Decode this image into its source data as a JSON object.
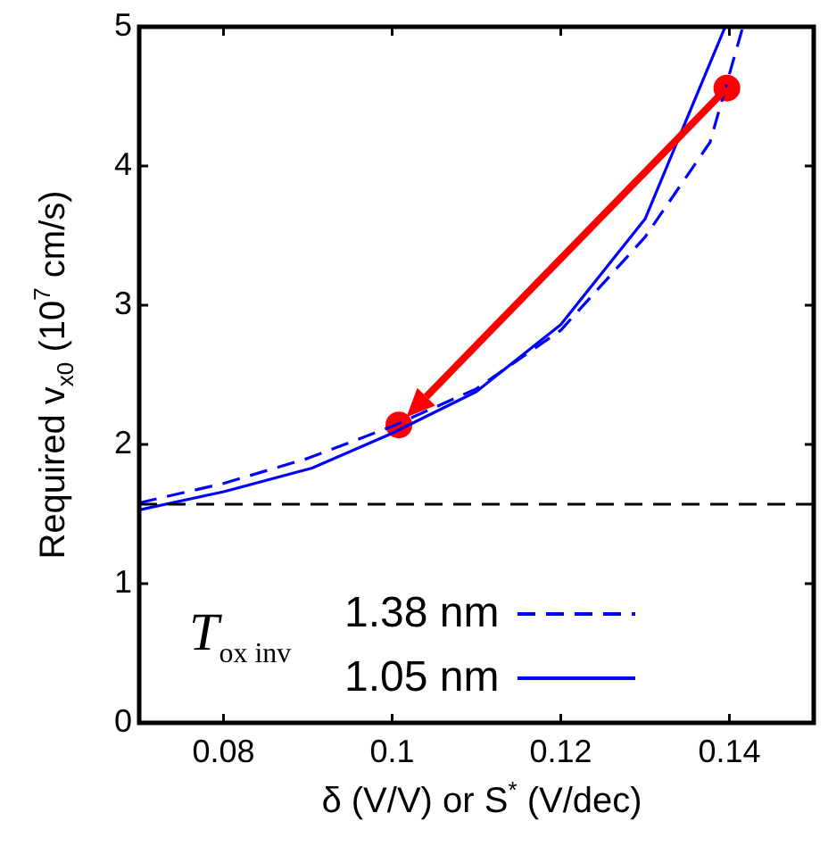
{
  "chart_data": {
    "type": "line",
    "xlabel": "δ (V/V) or S$^{*}$ (V/dec)",
    "ylabel": "Required v$_{x0}$ (10$^{7}$ cm/s)",
    "legend_title": "T$_{ox inv}$",
    "legend": "bottom",
    "grid": false,
    "marker": "none",
    "xlim": [
      0.07,
      0.15
    ],
    "xticks": [
      0.08,
      0.1,
      0.12,
      0.14
    ],
    "ylim": [
      0,
      5
    ],
    "yticks": [
      0,
      1,
      2,
      3,
      4,
      5
    ],
    "series": [
      {
        "name": "1.38 nm",
        "color": "#0000ff",
        "line_style": "dashed",
        "x": [
          0.07,
          0.08,
          0.09,
          0.1,
          0.11,
          0.12,
          0.13,
          0.1377,
          0.1416
        ],
        "values": [
          1.58,
          1.72,
          1.9,
          2.13,
          2.4,
          2.82,
          3.49,
          4.17,
          5
        ]
      },
      {
        "name": "1.05 nm",
        "color": "#0000ff",
        "line_style": "solid",
        "x": [
          0.07,
          0.08,
          0.0905,
          0.1,
          0.11,
          0.12,
          0.13,
          0.1395
        ],
        "values": [
          1.53,
          1.66,
          1.83,
          2.08,
          2.38,
          2.86,
          3.62,
          5
        ]
      },
      {
        "type": "scatter",
        "color": "#ff0000",
        "marker": "circle",
        "x": [
          0.1008,
          0.1397
        ],
        "values": [
          2.14,
          4.56
        ]
      }
    ],
    "ref_lines": [
      {
        "axis": "y",
        "value": 1.57,
        "color": "#000000",
        "line_style": "dashed"
      }
    ]
  }
}
